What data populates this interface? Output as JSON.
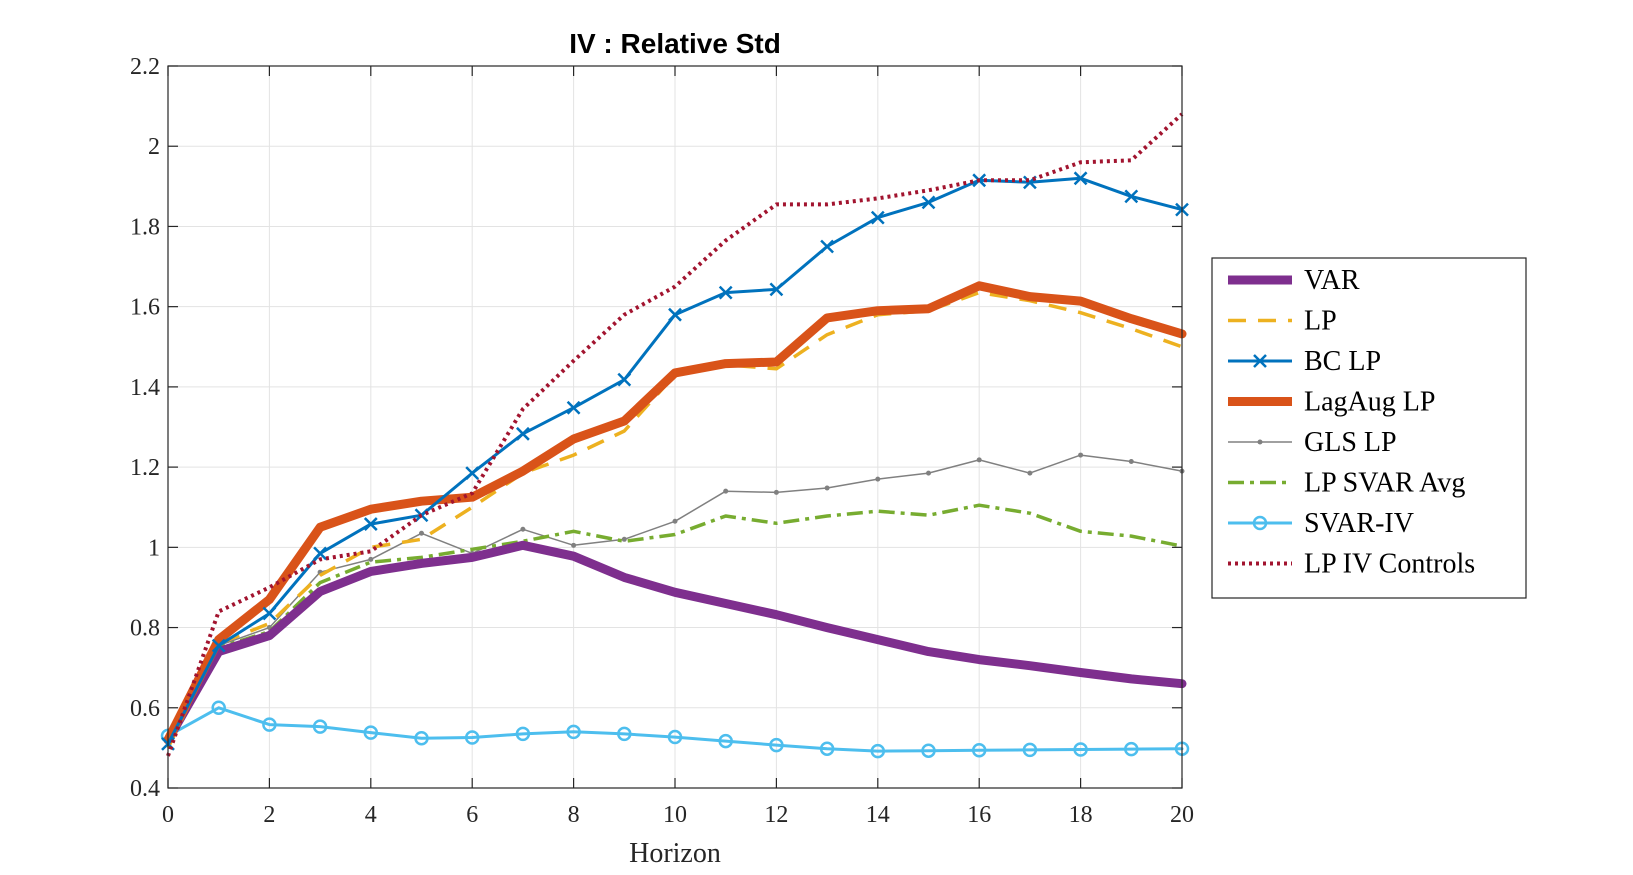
{
  "chart_data": {
    "type": "line",
    "title": "IV : Relative Std",
    "xlabel": "Horizon",
    "ylabel": "",
    "xlim": [
      0,
      20
    ],
    "ylim": [
      0.4,
      2.2
    ],
    "xticks": [
      "0",
      "2",
      "4",
      "6",
      "8",
      "10",
      "12",
      "14",
      "16",
      "18",
      "20"
    ],
    "yticks": [
      "0.4",
      "0.6",
      "0.8",
      "1",
      "1.2",
      "1.4",
      "1.6",
      "1.8",
      "2",
      "2.2"
    ],
    "grid": true,
    "legend_position": "right",
    "x": [
      0,
      1,
      2,
      3,
      4,
      5,
      6,
      7,
      8,
      9,
      10,
      11,
      12,
      13,
      14,
      15,
      16,
      17,
      18,
      19,
      20
    ],
    "series": [
      {
        "name": "VAR",
        "color": "#7E2F8E",
        "style": "solid-thick",
        "values": [
          0.52,
          0.74,
          0.78,
          0.89,
          0.94,
          0.96,
          0.975,
          1.005,
          0.978,
          0.925,
          0.888,
          0.86,
          0.832,
          0.8,
          0.77,
          0.74,
          0.72,
          0.705,
          0.688,
          0.672,
          0.66
        ]
      },
      {
        "name": "LP",
        "color": "#EDB120",
        "style": "dashed",
        "values": [
          0.5,
          0.76,
          0.81,
          0.93,
          1.0,
          1.02,
          1.1,
          1.185,
          1.23,
          1.29,
          1.43,
          1.455,
          1.445,
          1.53,
          1.58,
          1.59,
          1.635,
          1.615,
          1.585,
          1.545,
          1.5
        ]
      },
      {
        "name": "BC LP",
        "color": "#0072BD",
        "style": "solid-cross",
        "values": [
          0.51,
          0.755,
          0.835,
          0.985,
          1.058,
          1.08,
          1.185,
          1.283,
          1.348,
          1.418,
          1.58,
          1.635,
          1.643,
          1.75,
          1.822,
          1.86,
          1.915,
          1.91,
          1.92,
          1.875,
          1.842
        ]
      },
      {
        "name": "LagAug LP",
        "color": "#D95319",
        "style": "solid-thick",
        "values": [
          0.52,
          0.77,
          0.87,
          1.05,
          1.095,
          1.115,
          1.125,
          1.19,
          1.27,
          1.315,
          1.435,
          1.458,
          1.462,
          1.572,
          1.59,
          1.595,
          1.652,
          1.625,
          1.614,
          1.57,
          1.532
        ]
      },
      {
        "name": "GLS LP",
        "color": "#808080",
        "style": "solid-thin-dot",
        "values": [
          0.52,
          0.755,
          0.8,
          0.938,
          0.97,
          1.035,
          0.985,
          1.045,
          1.005,
          1.02,
          1.065,
          1.14,
          1.137,
          1.148,
          1.17,
          1.185,
          1.218,
          1.185,
          1.23,
          1.214,
          1.19
        ]
      },
      {
        "name": "LP SVAR Avg",
        "color": "#77AC30",
        "style": "dashdot",
        "values": [
          0.52,
          0.75,
          0.79,
          0.912,
          0.963,
          0.975,
          0.995,
          1.015,
          1.04,
          1.015,
          1.032,
          1.078,
          1.06,
          1.078,
          1.09,
          1.08,
          1.105,
          1.085,
          1.04,
          1.028,
          1.003
        ]
      },
      {
        "name": "SVAR-IV",
        "color": "#4DBEEE",
        "style": "solid-circle",
        "values": [
          0.53,
          0.6,
          0.558,
          0.553,
          0.538,
          0.524,
          0.526,
          0.535,
          0.54,
          0.535,
          0.527,
          0.517,
          0.507,
          0.498,
          0.492,
          0.493,
          0.494,
          0.495,
          0.496,
          0.497,
          0.498
        ]
      },
      {
        "name": "LP IV Controls",
        "color": "#A2142F",
        "style": "dotted",
        "values": [
          0.48,
          0.84,
          0.9,
          0.97,
          0.99,
          1.08,
          1.135,
          1.345,
          1.465,
          1.58,
          1.65,
          1.765,
          1.855,
          1.855,
          1.87,
          1.89,
          1.915,
          1.915,
          1.96,
          1.965,
          2.08
        ]
      }
    ]
  }
}
